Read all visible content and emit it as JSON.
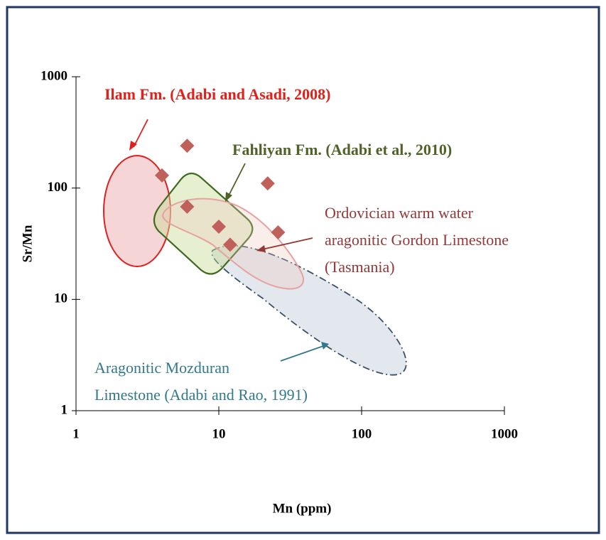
{
  "chart_data": {
    "type": "scatter",
    "xlabel": "Mn (ppm)",
    "ylabel": "Sr/Mn",
    "x": [
      4,
      6,
      6,
      10,
      12,
      22,
      26
    ],
    "series": [
      {
        "color": "#c0605a",
        "values": [
          130,
          240,
          68,
          45,
          31,
          110,
          40
        ]
      }
    ],
    "xlim": [
      1,
      1000
    ],
    "ylim": [
      1,
      1000
    ],
    "xscale": "log",
    "yscale": "log",
    "xticks": [
      1,
      10,
      100,
      1000
    ],
    "yticks": [
      1,
      10,
      100,
      1000
    ],
    "annotations": [
      {
        "lines": [
          "Ilam Fm. (Adabi and Asadi, 2008)"
        ],
        "color": "#e0201a"
      },
      {
        "lines": [
          "Fahliyan Fm. (Adabi et al., 2010)"
        ],
        "color": "#4f6228"
      },
      {
        "lines": [
          "Ordovician warm water",
          "aragonitic Gordon Limestone",
          "(Tasmania)"
        ],
        "color": "#953735"
      },
      {
        "lines": [
          "Aragonitic Mozduran",
          "Limestone (Adabi and Rao, 1991)"
        ],
        "color": "#31798c"
      }
    ]
  }
}
